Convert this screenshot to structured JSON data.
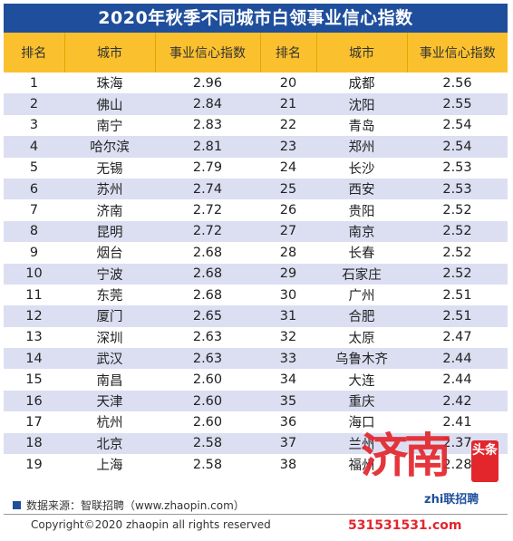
{
  "title": "2020年秋季不同城市白领事业信心指数",
  "headers": [
    "排名",
    "城市",
    "事业信心指数",
    "排名",
    "城市",
    "事业信心指数"
  ],
  "rows": [
    [
      "1",
      "珠海",
      "2.96",
      "20",
      "成都",
      "2.56"
    ],
    [
      "2",
      "佛山",
      "2.84",
      "21",
      "沈阳",
      "2.55"
    ],
    [
      "3",
      "南宁",
      "2.83",
      "22",
      "青岛",
      "2.54"
    ],
    [
      "4",
      "哈尔滨",
      "2.81",
      "23",
      "郑州",
      "2.54"
    ],
    [
      "5",
      "无锡",
      "2.79",
      "24",
      "长沙",
      "2.53"
    ],
    [
      "6",
      "苏州",
      "2.74",
      "25",
      "西安",
      "2.53"
    ],
    [
      "7",
      "济南",
      "2.72",
      "26",
      "贵阳",
      "2.52"
    ],
    [
      "8",
      "昆明",
      "2.72",
      "27",
      "南京",
      "2.52"
    ],
    [
      "9",
      "烟台",
      "2.68",
      "28",
      "长春",
      "2.52"
    ],
    [
      "10",
      "宁波",
      "2.68",
      "29",
      "石家庄",
      "2.52"
    ],
    [
      "11",
      "东莞",
      "2.68",
      "30",
      "广州",
      "2.51"
    ],
    [
      "12",
      "厦门",
      "2.65",
      "31",
      "合肥",
      "2.51"
    ],
    [
      "13",
      "深圳",
      "2.63",
      "32",
      "太原",
      "2.47"
    ],
    [
      "14",
      "武汉",
      "2.63",
      "33",
      "乌鲁木齐",
      "2.44"
    ],
    [
      "15",
      "南昌",
      "2.60",
      "34",
      "大连",
      "2.44"
    ],
    [
      "16",
      "天津",
      "2.60",
      "35",
      "重庆",
      "2.42"
    ],
    [
      "17",
      "杭州",
      "2.60",
      "36",
      "海口",
      "2.41"
    ],
    [
      "18",
      "北京",
      "2.58",
      "37",
      "兰州",
      "2.37"
    ],
    [
      "19",
      "上海",
      "2.58",
      "38",
      "福州",
      "2.28"
    ]
  ],
  "source_note": "数据来源：智联招聘（www.zhaopin.com）",
  "copyright": "Copyright©2020 zhaopin all rights reserved",
  "watermark": {
    "big_text": "济南",
    "badge_text": "头条",
    "logo_text": "zhi联招聘",
    "number": "531531531.com"
  },
  "colors": {
    "title_bg": "#1f4e9c",
    "header_bg": "#fbc02d",
    "stripe": "#dcdff2",
    "watermark_red": "#e3262c"
  }
}
